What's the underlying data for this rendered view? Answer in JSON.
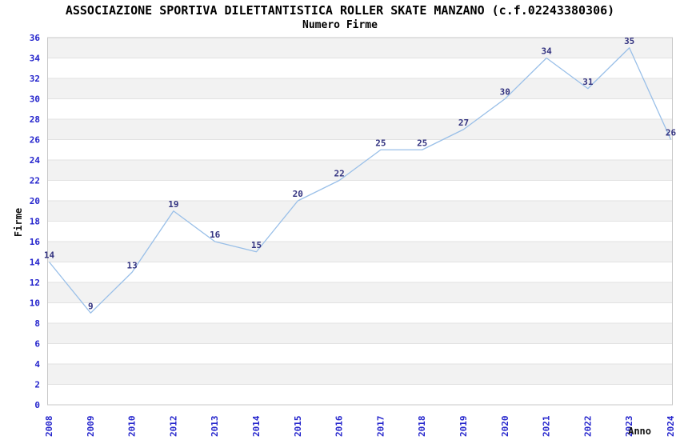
{
  "chart_data": {
    "type": "line",
    "title": "ASSOCIAZIONE SPORTIVA DILETTANTISTICA ROLLER SKATE MANZANO (c.f.02243380306)",
    "subtitle": "Numero Firme",
    "xlabel": "Anno",
    "ylabel": "Firme",
    "categories": [
      "2008",
      "2009",
      "2010",
      "2012",
      "2013",
      "2014",
      "2015",
      "2016",
      "2017",
      "2018",
      "2019",
      "2020",
      "2021",
      "2022",
      "2023",
      "2024"
    ],
    "values": [
      14,
      9,
      13,
      19,
      16,
      15,
      20,
      22,
      25,
      25,
      27,
      30,
      34,
      31,
      35,
      26
    ],
    "ylim": [
      0,
      36
    ],
    "ytick_step": 2,
    "grid": true,
    "legend": "none",
    "band_fill": "alternating",
    "colors": {
      "line": "#99BFE8",
      "value_labels": "#333380",
      "axis_ticks": "#2424CC",
      "band": "#F2F2F2",
      "background": "#FFFFFF",
      "grid": "#E2E2E2",
      "border": "#C8C8C8",
      "text": "#000000"
    }
  }
}
